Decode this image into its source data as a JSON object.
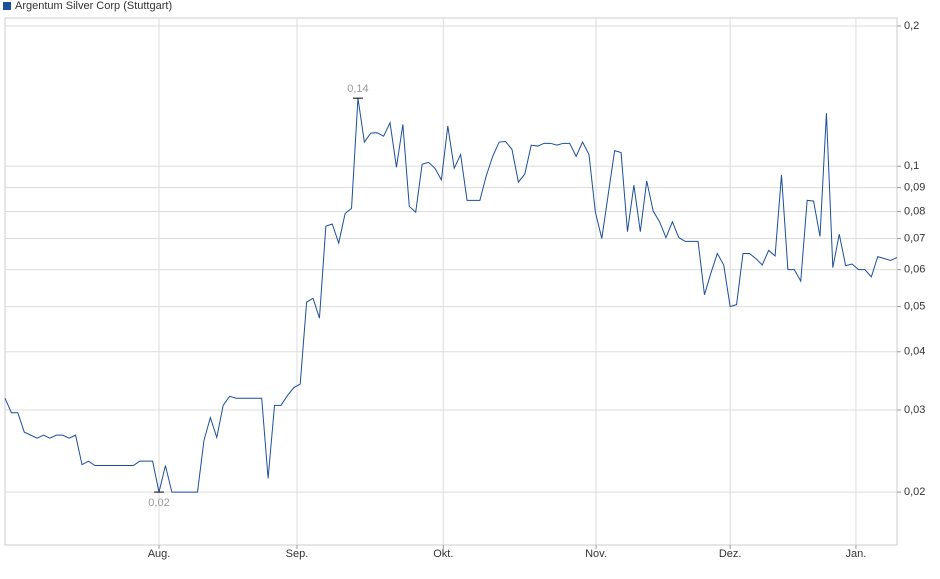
{
  "chart_data": {
    "type": "line",
    "log_y": true,
    "grid": true,
    "legend": "top-left",
    "series": [
      {
        "name": "Argentum Silver Corp (Stuttgart)",
        "color": "#1c4f9c",
        "values": [
          0.0318,
          0.0296,
          0.0296,
          0.0269,
          0.0265,
          0.0261,
          0.0265,
          0.0261,
          0.0265,
          0.0265,
          0.0261,
          0.0265,
          0.0229,
          0.0233,
          0.0228,
          0.0228,
          0.0228,
          0.0228,
          0.0228,
          0.0228,
          0.0228,
          0.0233,
          0.0233,
          0.0233,
          0.02,
          0.0228,
          0.02,
          0.02,
          0.02,
          0.02,
          0.02,
          0.0258,
          0.0289,
          0.0262,
          0.0307,
          0.0321,
          0.0318,
          0.0318,
          0.0318,
          0.0318,
          0.0318,
          0.0214,
          0.0307,
          0.0307,
          0.0322,
          0.0335,
          0.0341,
          0.0511,
          0.0521,
          0.0472,
          0.0744,
          0.0752,
          0.0684,
          0.0792,
          0.0812,
          0.14,
          0.1127,
          0.1178,
          0.118,
          0.116,
          0.124,
          0.0995,
          0.123,
          0.082,
          0.0797,
          0.101,
          0.102,
          0.099,
          0.0935,
          0.122,
          0.099,
          0.106,
          0.0845,
          0.0845,
          0.0845,
          0.0955,
          0.105,
          0.1127,
          0.113,
          0.1087,
          0.0925,
          0.0962,
          0.111,
          0.1105,
          0.112,
          0.112,
          0.111,
          0.112,
          0.112,
          0.105,
          0.1127,
          0.106,
          0.0797,
          0.07,
          0.087,
          0.108,
          0.107,
          0.0724,
          0.0911,
          0.0724,
          0.093,
          0.0802,
          0.076,
          0.0703,
          0.076,
          0.0703,
          0.069,
          0.069,
          0.069,
          0.053,
          0.059,
          0.065,
          0.0614,
          0.05,
          0.0505,
          0.065,
          0.065,
          0.0634,
          0.0614,
          0.066,
          0.0642,
          0.0958,
          0.06,
          0.06,
          0.0567,
          0.0845,
          0.0842,
          0.0707,
          0.13,
          0.0606,
          0.0715,
          0.0612,
          0.0617,
          0.06,
          0.06,
          0.0579,
          0.064,
          0.0634,
          0.0628,
          0.0637
        ]
      }
    ],
    "annotations": [
      {
        "value": 0.14,
        "label": "0,14"
      },
      {
        "value": 0.02,
        "label": "0,02"
      }
    ],
    "xlim": [
      0,
      139
    ],
    "xticks": [
      {
        "value": 24,
        "label": "Aug."
      },
      {
        "value": 45.5,
        "label": "Sep."
      },
      {
        "value": 68.3,
        "label": "Okt."
      },
      {
        "value": 92.1,
        "label": "Nov."
      },
      {
        "value": 113,
        "label": "Dez."
      },
      {
        "value": 132.6,
        "label": "Jan."
      }
    ],
    "ylim": [
      0.0154,
      0.208
    ],
    "yticks": [
      {
        "value": 0.02,
        "label": "0,02"
      },
      {
        "value": 0.03,
        "label": "0,03"
      },
      {
        "value": 0.04,
        "label": "0,04"
      },
      {
        "value": 0.05,
        "label": "0,05"
      },
      {
        "value": 0.06,
        "label": "0,06"
      },
      {
        "value": 0.07,
        "label": "0,07"
      },
      {
        "value": 0.08,
        "label": "0,08"
      },
      {
        "value": 0.09,
        "label": "0,09"
      },
      {
        "value": 0.1,
        "label": "0,1"
      },
      {
        "value": 0.2,
        "label": "0,2"
      }
    ]
  }
}
